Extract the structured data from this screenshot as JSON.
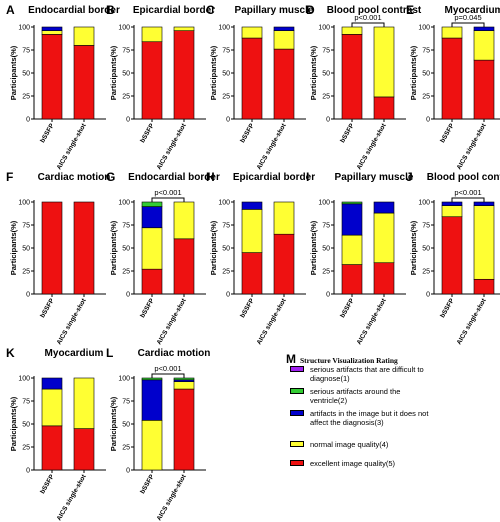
{
  "legend": {
    "letter": "M",
    "title": "Structure Visualization Rating",
    "items": [
      {
        "label": "serious artifacts that are difficult to diagnose(1)",
        "color": "#a020f0"
      },
      {
        "label": "serious artifacts around the ventricle(2)",
        "color": "#33cc33"
      },
      {
        "label": "artifacts in the image but it does not affect the diagnosis(3)",
        "color": "#0000cc"
      },
      {
        "label": "normal image quality(4)",
        "color": "#ffff33"
      },
      {
        "label": "excellent image quality(5)",
        "color": "#ee1111"
      }
    ]
  },
  "chart_data": [
    {
      "letter": "A",
      "title": "Endocardial border",
      "type": "bar",
      "stacked": true,
      "ylabel": "Participants(%)",
      "ylim": [
        0,
        100
      ],
      "yticks": [
        0,
        25,
        50,
        75,
        100
      ],
      "categories": [
        "bSSFP",
        "AICS single-shot"
      ],
      "series": [
        {
          "name": "excellent image quality(5)",
          "values": [
            92,
            80
          ]
        },
        {
          "name": "normal image quality(4)",
          "values": [
            4,
            20
          ]
        },
        {
          "name": "artifacts in the image but it does not affect the diagnosis(3)",
          "values": [
            4,
            0
          ]
        },
        {
          "name": "serious artifacts around the ventricle(2)",
          "values": [
            0,
            0
          ]
        },
        {
          "name": "serious artifacts that are difficult to diagnose(1)",
          "values": [
            0,
            0
          ]
        }
      ],
      "pvalue": ""
    },
    {
      "letter": "B",
      "title": "Epicardial border",
      "type": "bar",
      "stacked": true,
      "ylabel": "Participants(%)",
      "ylim": [
        0,
        100
      ],
      "yticks": [
        0,
        25,
        50,
        75,
        100
      ],
      "categories": [
        "bSSFP",
        "AICS single-shot"
      ],
      "series": [
        {
          "name": "excellent image quality(5)",
          "values": [
            84,
            96
          ]
        },
        {
          "name": "normal image quality(4)",
          "values": [
            16,
            4
          ]
        },
        {
          "name": "artifacts in the image but it does not affect the diagnosis(3)",
          "values": [
            0,
            0
          ]
        },
        {
          "name": "serious artifacts around the ventricle(2)",
          "values": [
            0,
            0
          ]
        },
        {
          "name": "serious artifacts that are difficult to diagnose(1)",
          "values": [
            0,
            0
          ]
        }
      ],
      "pvalue": ""
    },
    {
      "letter": "C",
      "title": "Papillary muscle",
      "type": "bar",
      "stacked": true,
      "ylabel": "Participants(%)",
      "ylim": [
        0,
        100
      ],
      "yticks": [
        0,
        25,
        50,
        75,
        100
      ],
      "categories": [
        "bSSFP",
        "AICS single-shot"
      ],
      "series": [
        {
          "name": "excellent image quality(5)",
          "values": [
            88,
            76
          ]
        },
        {
          "name": "normal image quality(4)",
          "values": [
            12,
            20
          ]
        },
        {
          "name": "artifacts in the image but it does not affect the diagnosis(3)",
          "values": [
            0,
            4
          ]
        },
        {
          "name": "serious artifacts around the ventricle(2)",
          "values": [
            0,
            0
          ]
        },
        {
          "name": "serious artifacts that are difficult to diagnose(1)",
          "values": [
            0,
            0
          ]
        }
      ],
      "pvalue": ""
    },
    {
      "letter": "D",
      "title": "Blood pool contrast",
      "type": "bar",
      "stacked": true,
      "ylabel": "Participants(%)",
      "ylim": [
        0,
        100
      ],
      "yticks": [
        0,
        25,
        50,
        75,
        100
      ],
      "categories": [
        "bSSFP",
        "AICS single-shot"
      ],
      "series": [
        {
          "name": "excellent image quality(5)",
          "values": [
            92,
            24
          ]
        },
        {
          "name": "normal image quality(4)",
          "values": [
            8,
            76
          ]
        },
        {
          "name": "artifacts in the image but it does not affect the diagnosis(3)",
          "values": [
            0,
            0
          ]
        },
        {
          "name": "serious artifacts around the ventricle(2)",
          "values": [
            0,
            0
          ]
        },
        {
          "name": "serious artifacts that are difficult to diagnose(1)",
          "values": [
            0,
            0
          ]
        }
      ],
      "pvalue": "p<0.001"
    },
    {
      "letter": "E",
      "title": "Myocardium",
      "type": "bar",
      "stacked": true,
      "ylabel": "Participants(%)",
      "ylim": [
        0,
        100
      ],
      "yticks": [
        0,
        25,
        50,
        75,
        100
      ],
      "categories": [
        "bSSFP",
        "AICS single-shot"
      ],
      "series": [
        {
          "name": "excellent image quality(5)",
          "values": [
            88,
            64
          ]
        },
        {
          "name": "normal image quality(4)",
          "values": [
            12,
            32
          ]
        },
        {
          "name": "artifacts in the image but it does not affect the diagnosis(3)",
          "values": [
            0,
            4
          ]
        },
        {
          "name": "serious artifacts around the ventricle(2)",
          "values": [
            0,
            0
          ]
        },
        {
          "name": "serious artifacts that are difficult to diagnose(1)",
          "values": [
            0,
            0
          ]
        }
      ],
      "pvalue": "p=0.045"
    },
    {
      "letter": "F",
      "title": "Cardiac motion",
      "type": "bar",
      "stacked": true,
      "ylabel": "Participants(%)",
      "ylim": [
        0,
        100
      ],
      "yticks": [
        0,
        25,
        50,
        75,
        100
      ],
      "categories": [
        "bSSFP",
        "AICS single-shot"
      ],
      "series": [
        {
          "name": "excellent image quality(5)",
          "values": [
            100,
            100
          ]
        },
        {
          "name": "normal image quality(4)",
          "values": [
            0,
            0
          ]
        },
        {
          "name": "artifacts in the image but it does not affect the diagnosis(3)",
          "values": [
            0,
            0
          ]
        },
        {
          "name": "serious artifacts around the ventricle(2)",
          "values": [
            0,
            0
          ]
        },
        {
          "name": "serious artifacts that are difficult to diagnose(1)",
          "values": [
            0,
            0
          ]
        }
      ],
      "pvalue": ""
    },
    {
      "letter": "G",
      "title": "Endocardial border",
      "type": "bar",
      "stacked": true,
      "ylabel": "Participants(%)",
      "ylim": [
        0,
        100
      ],
      "yticks": [
        0,
        25,
        50,
        75,
        100
      ],
      "categories": [
        "bSSFP",
        "AICS single-shot"
      ],
      "series": [
        {
          "name": "excellent image quality(5)",
          "values": [
            27,
            60
          ]
        },
        {
          "name": "normal image quality(4)",
          "values": [
            45,
            40
          ]
        },
        {
          "name": "artifacts in the image but it does not affect the diagnosis(3)",
          "values": [
            23,
            0
          ]
        },
        {
          "name": "serious artifacts around the ventricle(2)",
          "values": [
            5,
            0
          ]
        },
        {
          "name": "serious artifacts that are difficult to diagnose(1)",
          "values": [
            0,
            0
          ]
        }
      ],
      "pvalue": "p<0.001"
    },
    {
      "letter": "H",
      "title": "Epicardial border",
      "type": "bar",
      "stacked": true,
      "ylabel": "Participants(%)",
      "ylim": [
        0,
        100
      ],
      "yticks": [
        0,
        25,
        50,
        75,
        100
      ],
      "categories": [
        "bSSFP",
        "AICS single-shot"
      ],
      "series": [
        {
          "name": "excellent image quality(5)",
          "values": [
            45,
            65
          ]
        },
        {
          "name": "normal image quality(4)",
          "values": [
            47,
            35
          ]
        },
        {
          "name": "artifacts in the image but it does not affect the diagnosis(3)",
          "values": [
            8,
            0
          ]
        },
        {
          "name": "serious artifacts around the ventricle(2)",
          "values": [
            0,
            0
          ]
        },
        {
          "name": "serious artifacts that are difficult to diagnose(1)",
          "values": [
            0,
            0
          ]
        }
      ],
      "pvalue": ""
    },
    {
      "letter": "I",
      "title": "Papillary muscle",
      "type": "bar",
      "stacked": true,
      "ylabel": "Participants(%)",
      "ylim": [
        0,
        100
      ],
      "yticks": [
        0,
        25,
        50,
        75,
        100
      ],
      "categories": [
        "bSSFP",
        "AICS single-shot"
      ],
      "series": [
        {
          "name": "excellent image quality(5)",
          "values": [
            32,
            34
          ]
        },
        {
          "name": "normal image quality(4)",
          "values": [
            32,
            54
          ]
        },
        {
          "name": "artifacts in the image but it does not affect the diagnosis(3)",
          "values": [
            34,
            12
          ]
        },
        {
          "name": "serious artifacts around the ventricle(2)",
          "values": [
            2,
            0
          ]
        },
        {
          "name": "serious artifacts that are difficult to diagnose(1)",
          "values": [
            0,
            0
          ]
        }
      ],
      "pvalue": ""
    },
    {
      "letter": "J",
      "title": "Blood pool contrast",
      "type": "bar",
      "stacked": true,
      "ylabel": "Participants(%)",
      "ylim": [
        0,
        100
      ],
      "yticks": [
        0,
        25,
        50,
        75,
        100
      ],
      "categories": [
        "bSSFP",
        "AICS single-shot"
      ],
      "series": [
        {
          "name": "excellent image quality(5)",
          "values": [
            84,
            16
          ]
        },
        {
          "name": "normal image quality(4)",
          "values": [
            12,
            80
          ]
        },
        {
          "name": "artifacts in the image but it does not affect the diagnosis(3)",
          "values": [
            4,
            4
          ]
        },
        {
          "name": "serious artifacts around the ventricle(2)",
          "values": [
            0,
            0
          ]
        },
        {
          "name": "serious artifacts that are difficult to diagnose(1)",
          "values": [
            0,
            0
          ]
        }
      ],
      "pvalue": "p<0.001"
    },
    {
      "letter": "K",
      "title": "Myocardium",
      "type": "bar",
      "stacked": true,
      "ylabel": "Participants(%)",
      "ylim": [
        0,
        100
      ],
      "yticks": [
        0,
        25,
        50,
        75,
        100
      ],
      "categories": [
        "bSSFP",
        "AICS single-shot"
      ],
      "series": [
        {
          "name": "excellent image quality(5)",
          "values": [
            48,
            45
          ]
        },
        {
          "name": "normal image quality(4)",
          "values": [
            40,
            55
          ]
        },
        {
          "name": "artifacts in the image but it does not affect the diagnosis(3)",
          "values": [
            12,
            0
          ]
        },
        {
          "name": "serious artifacts around the ventricle(2)",
          "values": [
            0,
            0
          ]
        },
        {
          "name": "serious artifacts that are difficult to diagnose(1)",
          "values": [
            0,
            0
          ]
        }
      ],
      "pvalue": ""
    },
    {
      "letter": "L",
      "title": "Cardiac motion",
      "type": "bar",
      "stacked": true,
      "ylabel": "Participants(%)",
      "ylim": [
        0,
        100
      ],
      "yticks": [
        0,
        25,
        50,
        75,
        100
      ],
      "categories": [
        "bSSFP",
        "AICS single-shot"
      ],
      "series": [
        {
          "name": "excellent image quality(5)",
          "values": [
            0,
            88
          ]
        },
        {
          "name": "normal image quality(4)",
          "values": [
            54,
            8
          ]
        },
        {
          "name": "artifacts in the image but it does not affect the diagnosis(3)",
          "values": [
            44,
            2
          ]
        },
        {
          "name": "serious artifacts around the ventricle(2)",
          "values": [
            2,
            2
          ]
        },
        {
          "name": "serious artifacts that are difficult to diagnose(1)",
          "values": [
            0,
            0
          ]
        }
      ],
      "pvalue": "p<0.001"
    }
  ]
}
